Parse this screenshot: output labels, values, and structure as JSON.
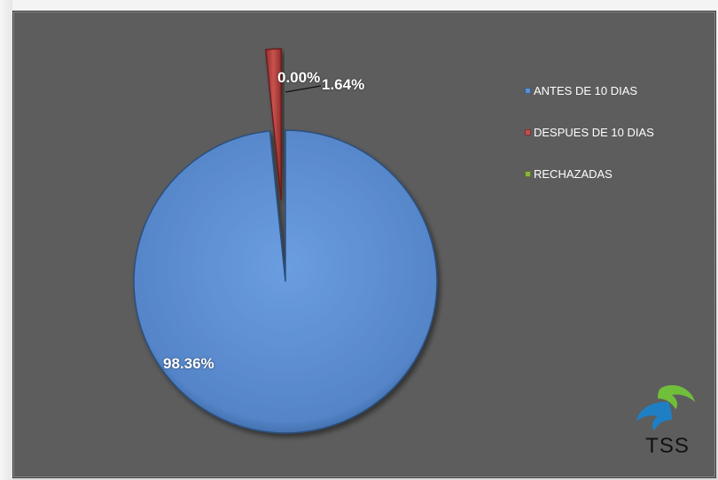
{
  "chart_data": {
    "type": "pie",
    "title": "",
    "categories": [
      "ANTES DE 10 DIAS",
      "DESPUES DE 10 DIAS",
      "RECHAZADAS"
    ],
    "values": [
      98.36,
      1.64,
      0.0
    ],
    "value_labels": [
      "98.36%",
      "1.64%",
      "0.00%"
    ],
    "colors": [
      "#5b8fd4",
      "#c0504d",
      "#8cb43c"
    ],
    "legend_position": "right",
    "style": "3d-bevel, exploded second slice"
  },
  "logo": {
    "text": "TSS",
    "colors": [
      "#1f7fc4",
      "#6fbf3a"
    ]
  },
  "colors": {
    "plot_background": "#5d5d5d",
    "label_text": "#ffffff"
  }
}
